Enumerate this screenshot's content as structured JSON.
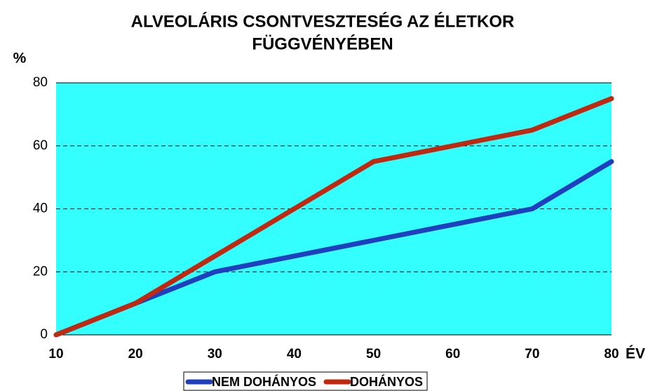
{
  "chart_data": {
    "type": "line",
    "title": [
      "ALVEOLÁRIS CSONTVESZTESÉG AZ ÉLETKOR",
      "FÜGGVÉNYÉBEN"
    ],
    "y_label": "%",
    "x_label": "ÉV",
    "x": [
      10,
      20,
      30,
      40,
      50,
      60,
      70,
      80
    ],
    "series": [
      {
        "name": "NEM DOHÁNYOS",
        "color": "#1f3fbf",
        "values": [
          0,
          10,
          20,
          25,
          30,
          35,
          40,
          55
        ]
      },
      {
        "name": "DOHÁNYOS",
        "color": "#c0280f",
        "values": [
          0,
          10,
          25,
          40,
          55,
          60,
          65,
          75
        ]
      }
    ],
    "xlim": [
      10,
      80
    ],
    "xticks": [
      10,
      20,
      30,
      40,
      50,
      60,
      70,
      80
    ],
    "ylim": [
      0,
      80
    ],
    "yticks": [
      0,
      20,
      40,
      60,
      80
    ],
    "grid": true,
    "background": "#33ffff",
    "legend": "bottom"
  }
}
